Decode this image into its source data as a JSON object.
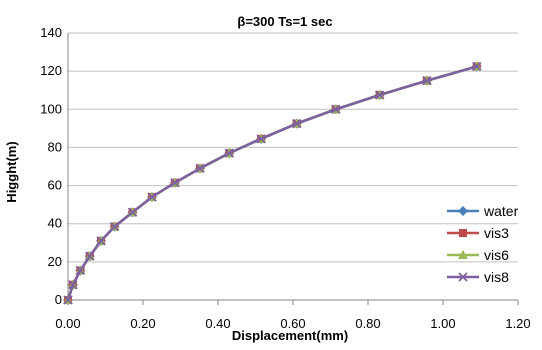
{
  "chart_data": {
    "type": "line",
    "title": "β=300   Ts=1 sec",
    "xlabel": "Displacement(mm)",
    "ylabel": "Higght(m)",
    "xlim": [
      0,
      1.2
    ],
    "ylim": [
      0,
      140
    ],
    "x_ticks": [
      "0.00",
      "0.20",
      "0.40",
      "0.60",
      "0.80",
      "1.00",
      "1.20"
    ],
    "y_ticks": [
      "0",
      "20",
      "40",
      "60",
      "80",
      "100",
      "120",
      "140"
    ],
    "grid": "horizontal",
    "legend_position": "right",
    "series": [
      {
        "name": "water",
        "color": "#4a7ebb",
        "marker": "diamond",
        "points": [
          [
            0,
            0
          ],
          [
            0.013,
            8
          ],
          [
            0.033,
            15.5
          ],
          [
            0.058,
            23
          ],
          [
            0.088,
            31
          ],
          [
            0.124,
            38.5
          ],
          [
            0.172,
            46
          ],
          [
            0.224,
            54
          ],
          [
            0.285,
            61.5
          ],
          [
            0.352,
            69
          ],
          [
            0.43,
            77
          ],
          [
            0.515,
            84.5
          ],
          [
            0.61,
            92.5
          ],
          [
            0.714,
            100
          ],
          [
            0.831,
            107.5
          ],
          [
            0.957,
            115
          ],
          [
            1.09,
            122.5
          ]
        ]
      },
      {
        "name": "vis3",
        "color": "#be4b48",
        "marker": "square",
        "points": [
          [
            0,
            0
          ],
          [
            0.013,
            8
          ],
          [
            0.033,
            15.5
          ],
          [
            0.058,
            23
          ],
          [
            0.088,
            31
          ],
          [
            0.124,
            38.5
          ],
          [
            0.172,
            46
          ],
          [
            0.224,
            54
          ],
          [
            0.285,
            61.5
          ],
          [
            0.352,
            69
          ],
          [
            0.43,
            77
          ],
          [
            0.515,
            84.5
          ],
          [
            0.61,
            92.5
          ],
          [
            0.714,
            100
          ],
          [
            0.831,
            107.5
          ],
          [
            0.957,
            115
          ],
          [
            1.09,
            122.5
          ]
        ]
      },
      {
        "name": "vis6",
        "color": "#98b954",
        "marker": "triangle",
        "points": [
          [
            0,
            0
          ],
          [
            0.013,
            8
          ],
          [
            0.033,
            15.5
          ],
          [
            0.058,
            23
          ],
          [
            0.088,
            31
          ],
          [
            0.124,
            38.5
          ],
          [
            0.172,
            46
          ],
          [
            0.224,
            54
          ],
          [
            0.285,
            61.5
          ],
          [
            0.352,
            69
          ],
          [
            0.43,
            77
          ],
          [
            0.515,
            84.5
          ],
          [
            0.61,
            92.5
          ],
          [
            0.714,
            100
          ],
          [
            0.831,
            107.5
          ],
          [
            0.957,
            115
          ],
          [
            1.09,
            122.5
          ]
        ]
      },
      {
        "name": "vis8",
        "color": "#7d60a0",
        "marker": "x",
        "points": [
          [
            0,
            0
          ],
          [
            0.013,
            8
          ],
          [
            0.033,
            15.5
          ],
          [
            0.058,
            23
          ],
          [
            0.088,
            31
          ],
          [
            0.124,
            38.5
          ],
          [
            0.172,
            46
          ],
          [
            0.224,
            54
          ],
          [
            0.285,
            61.5
          ],
          [
            0.352,
            69
          ],
          [
            0.43,
            77
          ],
          [
            0.515,
            84.5
          ],
          [
            0.61,
            92.5
          ],
          [
            0.714,
            100
          ],
          [
            0.831,
            107.5
          ],
          [
            0.957,
            115
          ],
          [
            1.09,
            122.5
          ]
        ]
      }
    ]
  }
}
